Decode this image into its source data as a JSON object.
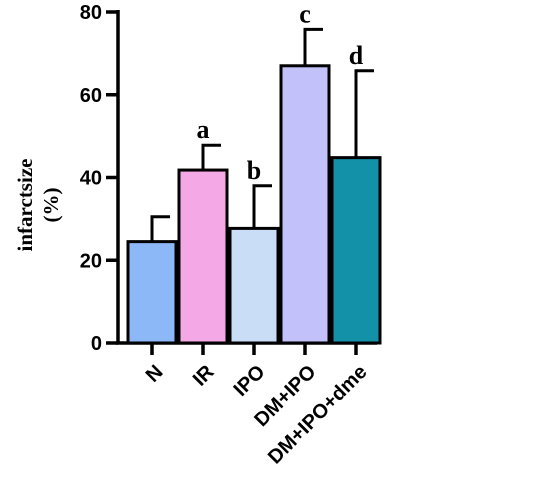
{
  "chart_data": {
    "type": "bar",
    "title": "",
    "xlabel": "",
    "ylabel_line1": "infarctsize",
    "ylabel_line2": "(%)",
    "ylim": [
      0,
      80
    ],
    "yticks": [
      0,
      20,
      40,
      60,
      80
    ],
    "categories": [
      "N",
      "IR",
      "IPO",
      "DM+IPO",
      "DM+IPO+dme"
    ],
    "values": [
      24.5,
      41.8,
      27.7,
      67.0,
      44.8
    ],
    "errors": [
      6.0,
      6.0,
      10.3,
      8.8,
      21.0
    ],
    "annotations": [
      "",
      "a",
      "b",
      "c",
      "d"
    ],
    "colors": [
      "#8DB8F7",
      "#F4A8E5",
      "#C9DDF7",
      "#C2C1FA",
      "#1291A8"
    ],
    "grid": false,
    "legend": "none"
  }
}
